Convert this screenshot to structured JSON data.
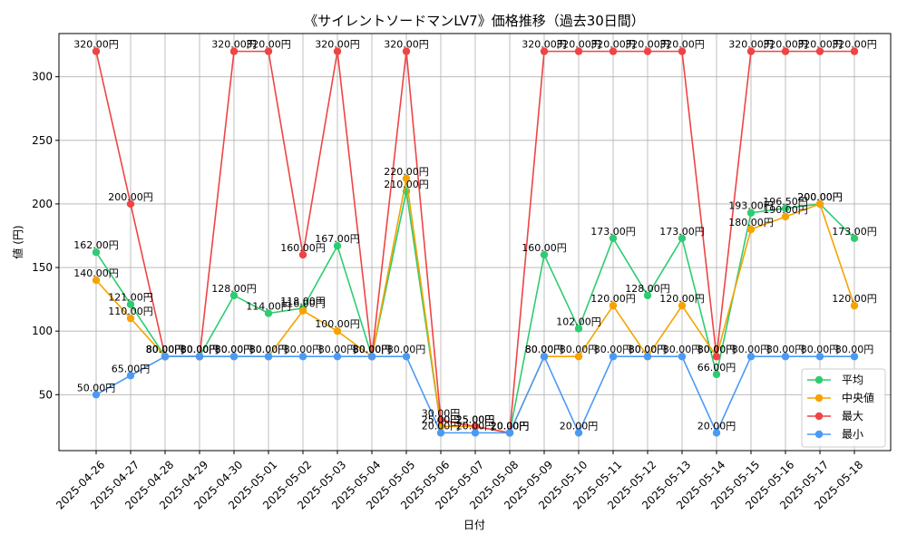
{
  "chart_data": {
    "type": "line",
    "title": "《サイレントソードマンLV7》価格推移（過去30日間）",
    "xlabel": "日付",
    "ylabel": "値 (円)",
    "ylim": [
      6,
      334
    ],
    "yticks": [
      50,
      100,
      150,
      200,
      250,
      300
    ],
    "value_suffix": "円",
    "grid": true,
    "legend_position": "lower-right",
    "categories": [
      "2025-04-26",
      "2025-04-27",
      "2025-04-28",
      "2025-04-29",
      "2025-04-30",
      "2025-05-01",
      "2025-05-02",
      "2025-05-03",
      "2025-05-04",
      "2025-05-05",
      "2025-05-06",
      "2025-05-07",
      "2025-05-08",
      "2025-05-09",
      "2025-05-10",
      "2025-05-11",
      "2025-05-12",
      "2025-05-13",
      "2025-05-14",
      "2025-05-15",
      "2025-05-16",
      "2025-05-17",
      "2025-05-18"
    ],
    "series": [
      {
        "name": "平均",
        "color": "#2ecc71",
        "values": [
          162,
          121,
          80,
          80,
          128,
          114,
          118,
          167,
          80,
          210,
          25,
          25,
          20,
          160,
          102,
          173,
          128,
          173,
          66,
          193,
          196.5,
          200,
          173
        ]
      },
      {
        "name": "中央値",
        "color": "#f5a300",
        "values": [
          140,
          110,
          80,
          80,
          80,
          80,
          116,
          100,
          80,
          220,
          25,
          25,
          20,
          80,
          80,
          120,
          80,
          120,
          80,
          180,
          190,
          200,
          120
        ]
      },
      {
        "name": "最大",
        "color": "#ef4444",
        "values": [
          320,
          200,
          80,
          80,
          320,
          320,
          160,
          320,
          80,
          320,
          30,
          25,
          20,
          320,
          320,
          320,
          320,
          320,
          80,
          320,
          320,
          320,
          320
        ]
      },
      {
        "name": "最小",
        "color": "#4a9af5",
        "values": [
          50,
          65,
          80,
          80,
          80,
          80,
          80,
          80,
          80,
          80,
          20,
          20,
          20,
          80,
          20,
          80,
          80,
          80,
          20,
          80,
          80,
          80,
          80
        ]
      }
    ]
  }
}
